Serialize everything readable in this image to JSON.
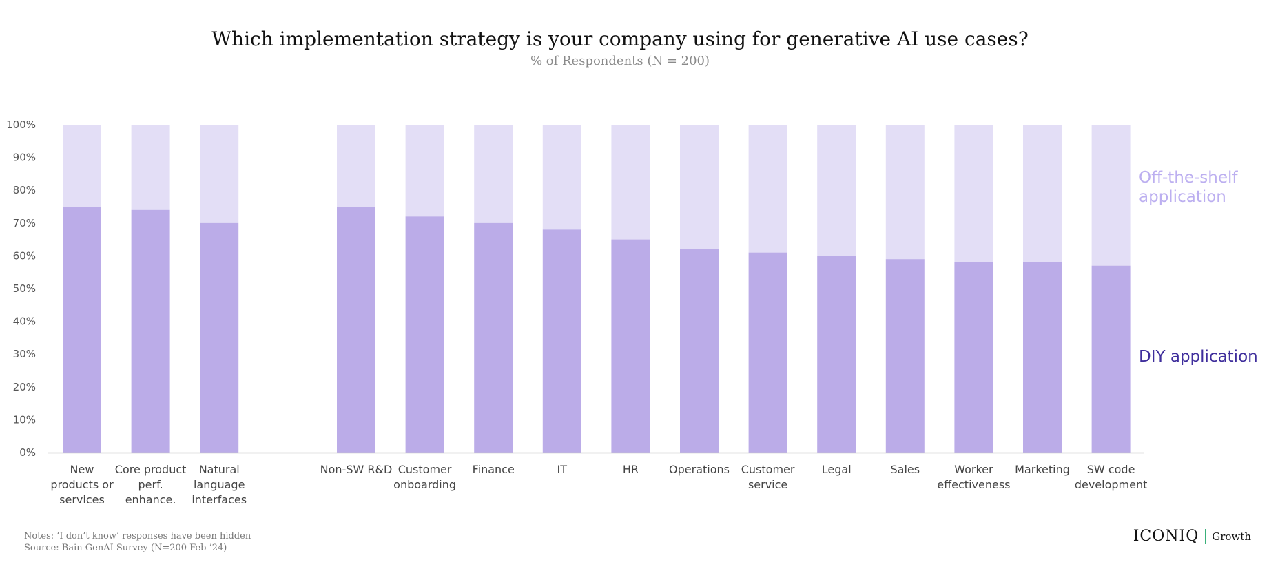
{
  "chart_data": {
    "type": "bar",
    "stacked": true,
    "normalized": true,
    "title": "Which implementation strategy is your company using for generative AI use cases?",
    "subtitle": "% of Respondents (N = 200)",
    "categories": [
      "New products or services",
      "Core product perf. enhance.",
      "Natural language interfaces",
      "Non-SW R&D",
      "Customer onboarding",
      "Finance",
      "IT",
      "HR",
      "Operations",
      "Customer service",
      "Legal",
      "Sales",
      "Worker effectiveness",
      "Marketing",
      "SW code development"
    ],
    "category_labels": [
      [
        "New",
        "products or",
        "services"
      ],
      [
        "Core product",
        "perf.",
        "enhance."
      ],
      [
        "Natural",
        "language",
        "interfaces"
      ],
      [
        "Non-SW R&D"
      ],
      [
        "Customer",
        "onboarding"
      ],
      [
        "Finance"
      ],
      [
        "IT"
      ],
      [
        "HR"
      ],
      [
        "Operations"
      ],
      [
        "Customer",
        "service"
      ],
      [
        "Legal"
      ],
      [
        "Sales"
      ],
      [
        "Worker",
        "effectiveness"
      ],
      [
        "Marketing"
      ],
      [
        "SW code",
        "development"
      ]
    ],
    "groups": [
      {
        "start": 0,
        "end": 2
      },
      {
        "start": 3,
        "end": 14
      }
    ],
    "series": [
      {
        "name": "DIY application",
        "color": "#bbacE8",
        "values": [
          75,
          74,
          70,
          75,
          72,
          70,
          68,
          65,
          62,
          61,
          60,
          59,
          58,
          58,
          57
        ]
      },
      {
        "name": "Off-the-shelf application",
        "color": "#e3def6",
        "values": [
          25,
          26,
          30,
          25,
          28,
          30,
          32,
          35,
          38,
          39,
          40,
          41,
          42,
          42,
          43
        ]
      }
    ],
    "ylim": [
      0,
      100
    ],
    "yticks": [
      "0%",
      "10%",
      "20%",
      "30%",
      "40%",
      "50%",
      "60%",
      "70%",
      "80%",
      "90%",
      "100%"
    ],
    "grid": false,
    "legend_placement": "right"
  },
  "legend": {
    "offshelf": "Off-the-shelf application",
    "diy": "DIY application"
  },
  "colors": {
    "diy": "#bbace8",
    "offshelf": "#e3def6",
    "diy_label": "#3f2e9c",
    "offshelf_label": "#bcaff0",
    "axis": "#c8c8c8",
    "brand_divider": "#3ab07a"
  },
  "footer": {
    "notes": "Notes: ‘I don’t know’ responses have been hidden",
    "source": "Source: Bain GenAI Survey (N=200 Feb ’24)"
  },
  "brand": {
    "name": "ICONIQ",
    "sub": "Growth"
  }
}
